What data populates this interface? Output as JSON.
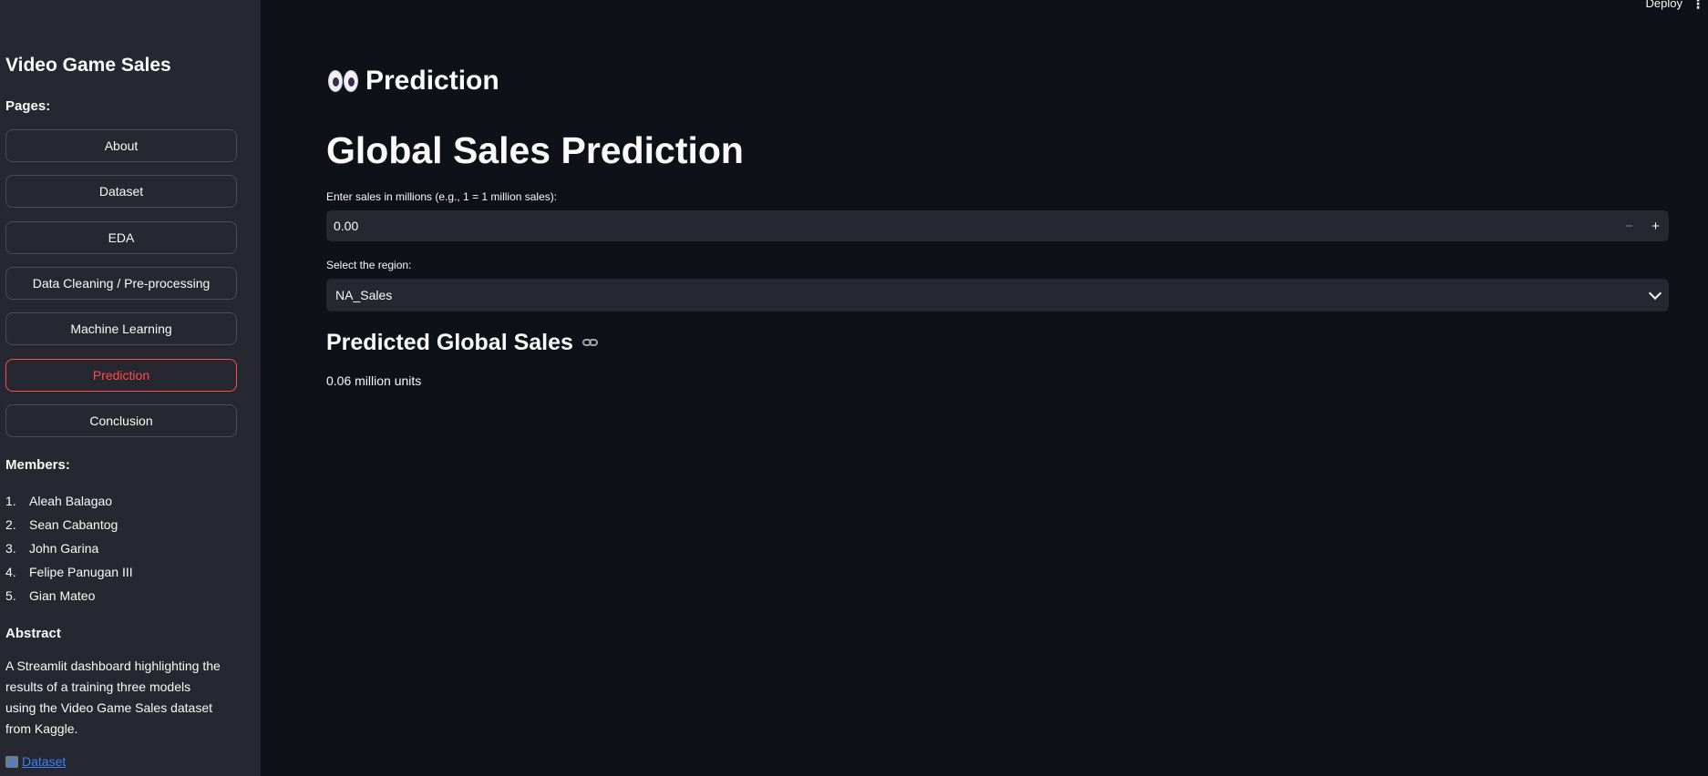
{
  "sidebar": {
    "title": "Video Game Sales",
    "pages_label": "Pages:",
    "nav": [
      {
        "label": "About"
      },
      {
        "label": "Dataset"
      },
      {
        "label": "EDA"
      },
      {
        "label": "Data Cleaning / Pre-processing"
      },
      {
        "label": "Machine Learning"
      },
      {
        "label": "Prediction"
      },
      {
        "label": "Conclusion"
      }
    ],
    "active_nav": "Prediction",
    "members_label": "Members:",
    "members": [
      {
        "num": "1.",
        "name": "Aleah Balagao"
      },
      {
        "num": "2.",
        "name": "Sean Cabantog"
      },
      {
        "num": "3.",
        "name": "John Garina"
      },
      {
        "num": "4.",
        "name": "Felipe Panugan III"
      },
      {
        "num": "5.",
        "name": "Gian Mateo"
      }
    ],
    "abstract_title": "Abstract",
    "abstract_text": "A Streamlit dashboard highlighting the results of a training three models using the Video Game Sales dataset from Kaggle.",
    "dataset_link": "Dataset",
    "dataset_icon": "bar-chart-icon"
  },
  "topbar": {
    "deploy_label": "Deploy",
    "menu_icon": "kebab-menu-icon"
  },
  "main": {
    "page_heading": "Prediction",
    "page_icon": "eyes-emoji-icon",
    "title": "Global Sales Prediction",
    "input_label": "Enter sales in millions (e.g., 1 = 1 million sales):",
    "input_value": "0.00",
    "minus_symbol": "−",
    "plus_symbol": "+",
    "select_label": "Select the region:",
    "select_value": "NA_Sales",
    "result_heading": "Predicted Global Sales",
    "result_text": "0.06 million units"
  },
  "colors": {
    "background": "#0e1117",
    "sidebar": "#262730",
    "accent": "#ff4b4b",
    "link": "#3b82f6"
  }
}
